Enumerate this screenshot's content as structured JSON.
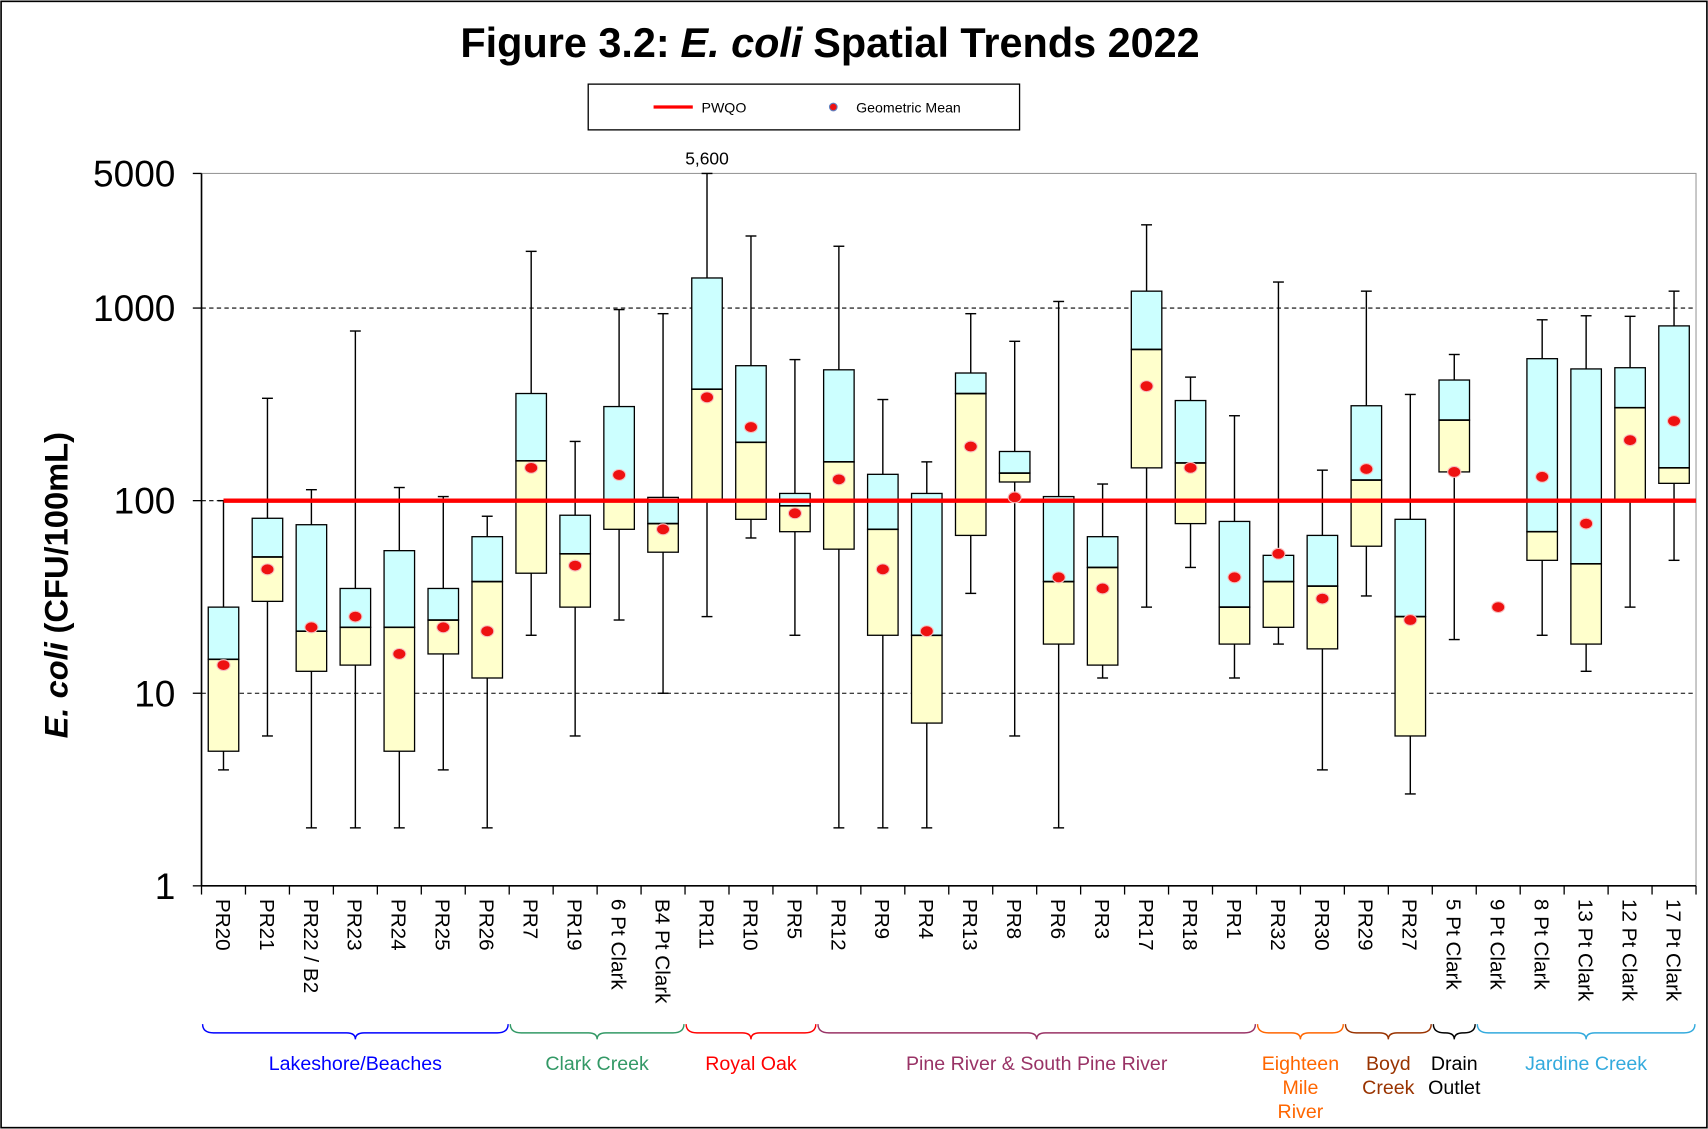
{
  "chart_data": {
    "type": "box",
    "title": {
      "prefix": "Figure 3.2:",
      "italic": "E. coli",
      "suffix": "Spatial Trends 2022"
    },
    "y_label": {
      "italic": "E. coli",
      "rest": "(CFU/100mL)"
    },
    "log_scale": true,
    "ylim": [
      1,
      5000
    ],
    "yticks": [
      1,
      10,
      100,
      1000,
      5000
    ],
    "grid": true,
    "legend": "top",
    "categories": [
      "PR20",
      "PR21",
      "PR22 / B2",
      "PR23",
      "PR24",
      "PR25",
      "PR26",
      "PR7",
      "PR19",
      "6 Pt Clark",
      "B4 Pt Clark",
      "PR11",
      "PR10",
      "PR5",
      "PR12",
      "PR9",
      "PR4",
      "PR13",
      "PR8",
      "PR6",
      "PR3",
      "PR17",
      "PR18",
      "PR1",
      "PR32",
      "PR30",
      "PR29",
      "PR27",
      "5 Pt Clark",
      "9 Pt Clark",
      "8 Pt Clark",
      "13 Pt Clark",
      "12 Pt Clark",
      "17 Pt Clark"
    ],
    "min": [
      4,
      6,
      2,
      2,
      2,
      4,
      2,
      20,
      6,
      24,
      10,
      25,
      64,
      20,
      2,
      2,
      2,
      33,
      6,
      2,
      12,
      28,
      45,
      12,
      18,
      4,
      32,
      3,
      19,
      null,
      20,
      13,
      28,
      49
    ],
    "q1": [
      5,
      30,
      13,
      14,
      5,
      16,
      12,
      42,
      28,
      71,
      54,
      100,
      80,
      69,
      56,
      20,
      7,
      66,
      125,
      18,
      14,
      148,
      76,
      18,
      22,
      17,
      58,
      6,
      141,
      null,
      49,
      18,
      100,
      123
    ],
    "median": [
      15,
      51,
      21,
      22,
      22,
      24,
      38,
      161,
      53,
      100,
      76,
      379,
      201,
      94,
      159,
      71,
      20,
      360,
      139,
      38,
      45,
      610,
      157,
      28,
      38,
      36,
      128,
      25,
      262,
      null,
      69,
      47,
      304,
      148
    ],
    "q3": [
      28,
      81,
      75,
      35,
      55,
      35,
      65,
      360,
      84,
      308,
      104,
      1433,
      502,
      109,
      478,
      137,
      109,
      460,
      180,
      105,
      65,
      1224,
      331,
      78,
      52,
      66,
      311,
      80,
      423,
      null,
      546,
      483,
      490,
      808
    ],
    "whisker_max": {
      "values": [
        100,
        340,
        114,
        760,
        117,
        105,
        83,
        1970,
        203,
        982,
        935,
        5600,
        2367,
        540,
        2094,
        335,
        159,
        935,
        672,
        1082,
        122,
        2705,
        438,
        276,
        1365,
        144,
        1224,
        356,
        574,
        null,
        869,
        912,
        906,
        1224
      ],
      "value_labels": [
        null,
        null,
        null,
        null,
        null,
        null,
        null,
        null,
        null,
        null,
        null,
        "5,600",
        null,
        null,
        null,
        null,
        null,
        null,
        null,
        null,
        null,
        null,
        null,
        null,
        null,
        null,
        null,
        null,
        null,
        null,
        null,
        null,
        null,
        null
      ]
    },
    "box_colors": {
      "upper": "#ccffff",
      "lower": "#ffffcc"
    },
    "geometric_mean": {
      "name": "Geometric Mean",
      "color": "#ee1111",
      "values": [
        14,
        44,
        22,
        25,
        16,
        22,
        21,
        148,
        46,
        136,
        71,
        344,
        241,
        86,
        129,
        44,
        21,
        191,
        104,
        40,
        35,
        393,
        148,
        40,
        53,
        31,
        146,
        24,
        141,
        28,
        133,
        76,
        206,
        259
      ]
    },
    "pwqo": {
      "name": "PWQO",
      "value": 100,
      "color": "#ff0000"
    },
    "groups": [
      {
        "name": [
          "Lakeshore/Beaches"
        ],
        "color": "#0000ff",
        "first": "PR20",
        "last": "PR26"
      },
      {
        "name": [
          "Clark Creek"
        ],
        "color": "#339966",
        "first": "PR7",
        "last": "B4 Pt Clark"
      },
      {
        "name": [
          "Royal Oak"
        ],
        "color": "#ff0000",
        "first": "PR11",
        "last": "PR5"
      },
      {
        "name": [
          "Pine River & South Pine River"
        ],
        "color": "#993366",
        "first": "PR12",
        "last": "PR1"
      },
      {
        "name": [
          "Eighteen",
          "Mile",
          "River"
        ],
        "color": "#ff6600",
        "first": "PR32",
        "last": "PR30"
      },
      {
        "name": [
          "Boyd",
          "Creek"
        ],
        "color": "#993300",
        "first": "PR29",
        "last": "PR27"
      },
      {
        "name": [
          "Drain",
          "Outlet"
        ],
        "color": "#000000",
        "first": "5 Pt Clark",
        "last": "5 Pt Clark"
      },
      {
        "name": [
          "Jardine Creek"
        ],
        "color": "#33aadd",
        "first": "9 Pt Clark",
        "last": "17 Pt Clark"
      }
    ]
  }
}
